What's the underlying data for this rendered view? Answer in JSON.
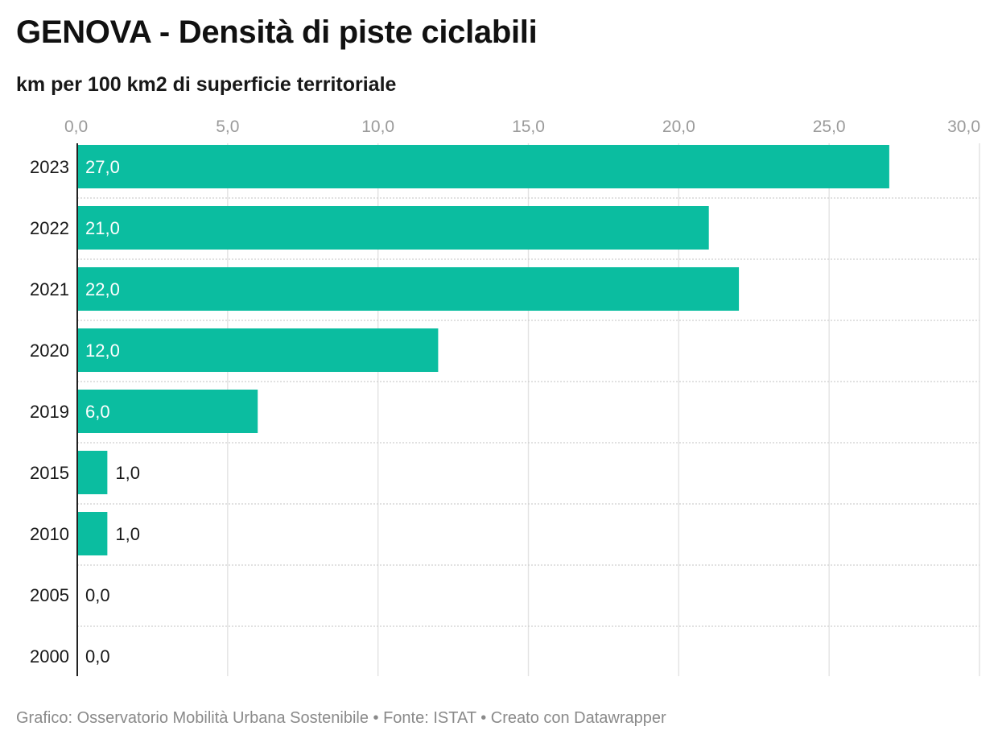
{
  "header": {
    "title": "GENOVA - Densità di piste ciclabili",
    "subtitle": "km per 100 km2 di superficie territoriale"
  },
  "footer": {
    "credit": "Grafico: Osservatorio Mobilità Urbana Sostenibile • Fonte: ISTAT • Creato con Datawrapper"
  },
  "colors": {
    "bar": "#0bbda0",
    "gridline": "#e2e2e2",
    "row_separator": "#cfcfcf",
    "axis_tick_text": "#9a9a9a",
    "label_inside": "#ffffff",
    "label_outside": "#181818"
  },
  "chart_data": {
    "type": "bar",
    "orientation": "horizontal",
    "title": "GENOVA - Densità di piste ciclabili",
    "subtitle": "km per 100 km2 di superficie territoriale",
    "categories": [
      "2023",
      "2022",
      "2021",
      "2020",
      "2019",
      "2015",
      "2010",
      "2005",
      "2000"
    ],
    "values": [
      27.0,
      21.0,
      22.0,
      12.0,
      6.0,
      1.0,
      1.0,
      0.0,
      0.0
    ],
    "value_labels": [
      "27,0",
      "21,0",
      "22,0",
      "12,0",
      "6,0",
      "1,0",
      "1,0",
      "0,0",
      "0,0"
    ],
    "xlim": [
      0,
      30
    ],
    "xticks": [
      0,
      5,
      10,
      15,
      20,
      25,
      30
    ],
    "xtick_labels": [
      "0,0",
      "5,0",
      "10,0",
      "15,0",
      "20,0",
      "25,0",
      "30,0"
    ],
    "x_axis_position": "top",
    "grid": true,
    "legend": "none"
  }
}
